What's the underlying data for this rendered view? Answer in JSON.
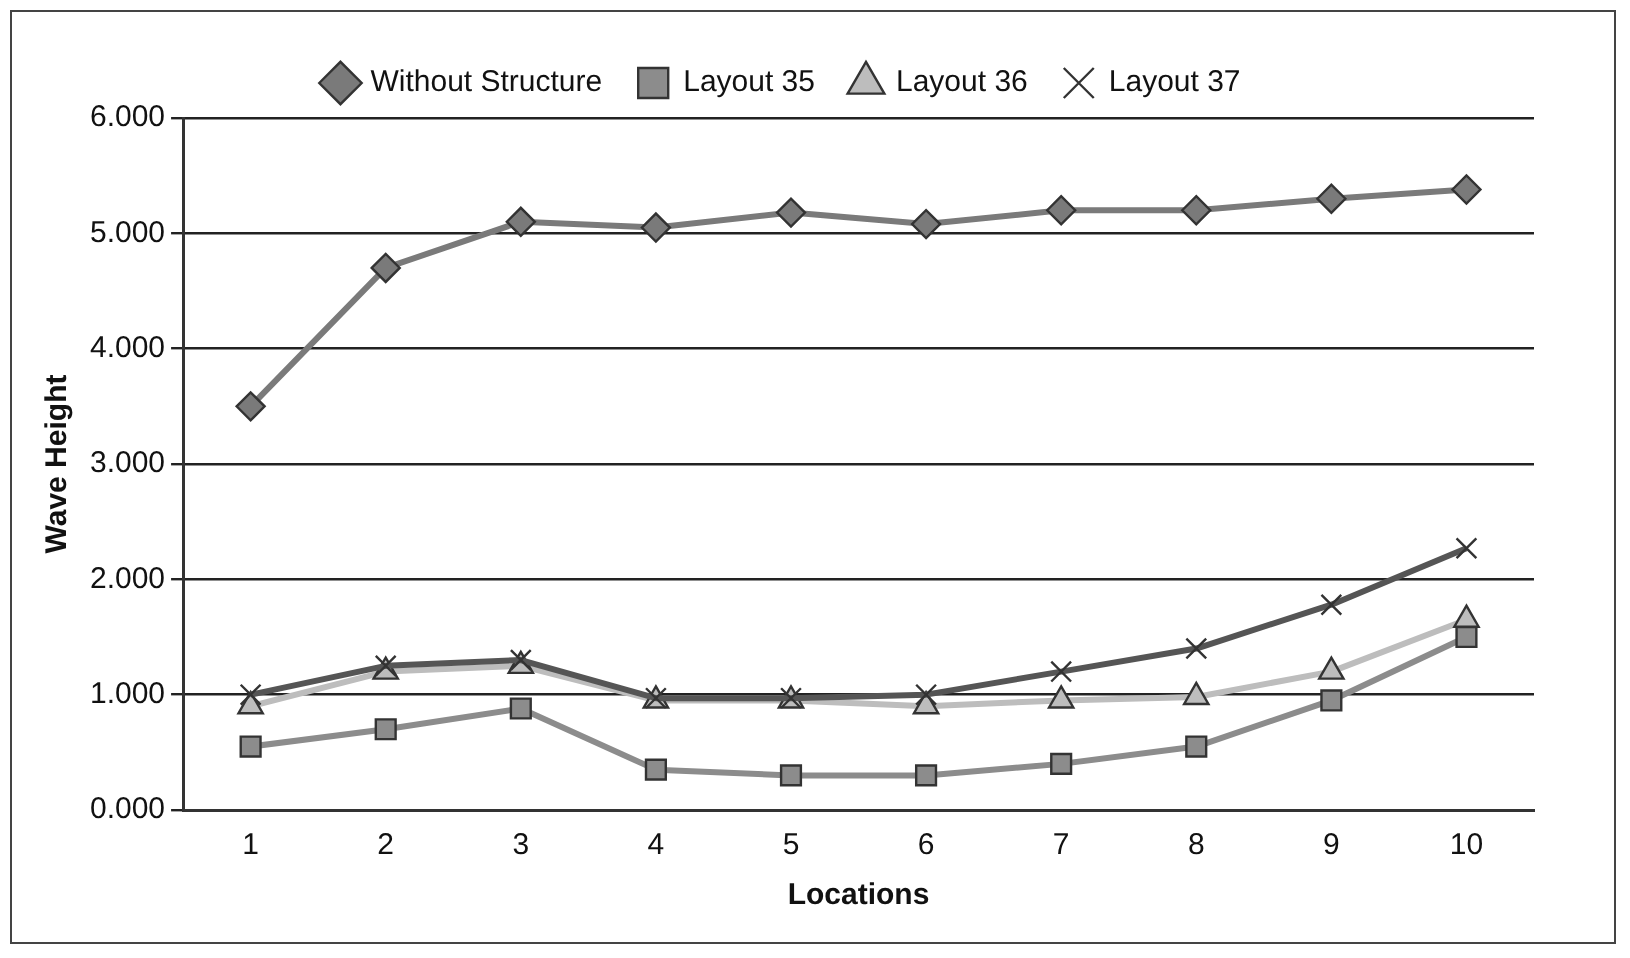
{
  "chart_data": {
    "type": "line",
    "xlabel": "Locations",
    "ylabel": "Wave Height",
    "categories": [
      "1",
      "2",
      "3",
      "4",
      "5",
      "6",
      "7",
      "8",
      "9",
      "10"
    ],
    "series": [
      {
        "name": "Without Structure",
        "color": "#7a7a7a",
        "marker": "diamond",
        "values": [
          3.5,
          4.7,
          5.1,
          5.05,
          5.18,
          5.08,
          5.2,
          5.2,
          5.3,
          5.38
        ]
      },
      {
        "name": "Layout 35",
        "color": "#8c8c8c",
        "marker": "square",
        "values": [
          0.55,
          0.7,
          0.88,
          0.35,
          0.3,
          0.3,
          0.4,
          0.55,
          0.95,
          1.5
        ]
      },
      {
        "name": "Layout 36",
        "color": "#bdbdbd",
        "marker": "triangle",
        "values": [
          0.9,
          1.2,
          1.25,
          0.95,
          0.95,
          0.9,
          0.95,
          0.98,
          1.2,
          1.65
        ]
      },
      {
        "name": "Layout 37",
        "color": "#555555",
        "marker": "cross",
        "values": [
          1.0,
          1.25,
          1.3,
          0.97,
          0.97,
          1.0,
          1.2,
          1.4,
          1.78,
          2.27
        ]
      }
    ],
    "ylim": [
      0,
      6
    ],
    "yticks": [
      {
        "value": 0,
        "label": "0.000"
      },
      {
        "value": 1,
        "label": "1.000"
      },
      {
        "value": 2,
        "label": "2.000"
      },
      {
        "value": 3,
        "label": "3.000"
      },
      {
        "value": 4,
        "label": "4.000"
      },
      {
        "value": 5,
        "label": "5.000"
      },
      {
        "value": 6,
        "label": "6.000"
      }
    ],
    "grid": "y",
    "legend": "top"
  }
}
